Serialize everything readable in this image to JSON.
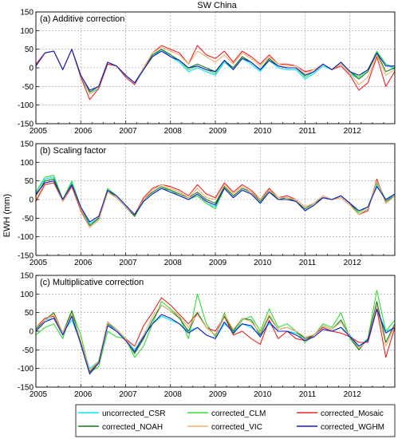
{
  "figure": {
    "title": "SW China",
    "ylabel": "EWH (mm)"
  },
  "legend": {
    "entries": [
      {
        "name": "uncorrected_CSR",
        "color": "#00e5ff"
      },
      {
        "name": "corrected_CLM",
        "color": "#33dd33"
      },
      {
        "name": "corrected_Mosaic",
        "color": "#ee2222"
      },
      {
        "name": "corrected_NOAH",
        "color": "#1a7a1a"
      },
      {
        "name": "corrected_VIC",
        "color": "#f0b070"
      },
      {
        "name": "corrected_WGHM",
        "color": "#1a1acc"
      }
    ]
  },
  "chart_data": [
    {
      "type": "line",
      "title": "(a) Additive correction",
      "xlim": [
        2005,
        2013
      ],
      "ylim": [
        -150,
        150
      ],
      "xticks": [
        2005,
        2006,
        2007,
        2008,
        2009,
        2010,
        2011,
        2012
      ],
      "yticks": [
        -150,
        -100,
        -50,
        0,
        50,
        100,
        150
      ],
      "grid": true,
      "x": [
        2005.0,
        2005.2,
        2005.4,
        2005.6,
        2005.8,
        2006.0,
        2006.2,
        2006.4,
        2006.6,
        2006.8,
        2007.0,
        2007.2,
        2007.4,
        2007.6,
        2007.8,
        2008.0,
        2008.2,
        2008.4,
        2008.6,
        2008.8,
        2009.0,
        2009.2,
        2009.4,
        2009.6,
        2009.8,
        2010.0,
        2010.2,
        2010.4,
        2010.6,
        2010.8,
        2011.0,
        2011.2,
        2011.4,
        2011.6,
        2011.8,
        2012.0,
        2012.2,
        2012.4,
        2012.6,
        2012.8,
        2013.0
      ],
      "series": [
        {
          "name": "uncorrected_CSR",
          "color": "#00e5ff",
          "values": [
            5,
            40,
            45,
            -5,
            50,
            -25,
            -70,
            -55,
            10,
            5,
            -25,
            -45,
            -5,
            30,
            50,
            30,
            15,
            -10,
            0,
            -10,
            -20,
            15,
            -5,
            25,
            10,
            -10,
            20,
            0,
            -5,
            -5,
            -30,
            -15,
            5,
            -5,
            10,
            -15,
            -30,
            -10,
            45,
            10,
            -5
          ]
        },
        {
          "name": "corrected_CLM",
          "color": "#33dd33",
          "values": [
            5,
            40,
            45,
            -5,
            50,
            -20,
            -65,
            -50,
            15,
            5,
            -20,
            -40,
            -5,
            35,
            50,
            35,
            20,
            -5,
            5,
            -5,
            -15,
            20,
            0,
            30,
            15,
            -5,
            25,
            5,
            0,
            0,
            -25,
            -10,
            10,
            -5,
            15,
            -10,
            -25,
            -5,
            45,
            10,
            0
          ]
        },
        {
          "name": "corrected_Mosaic",
          "color": "#ee2222",
          "values": [
            10,
            40,
            45,
            -5,
            50,
            -25,
            -85,
            -55,
            10,
            5,
            -25,
            -45,
            0,
            40,
            60,
            50,
            40,
            10,
            60,
            35,
            25,
            45,
            15,
            45,
            30,
            10,
            35,
            10,
            10,
            5,
            -10,
            -5,
            10,
            -5,
            5,
            -20,
            -60,
            -40,
            30,
            -50,
            -10
          ]
        },
        {
          "name": "corrected_NOAH",
          "color": "#1a7a1a",
          "values": [
            5,
            40,
            45,
            -5,
            50,
            -20,
            -65,
            -50,
            15,
            5,
            -20,
            -40,
            -5,
            35,
            50,
            35,
            20,
            0,
            10,
            0,
            -10,
            20,
            0,
            30,
            15,
            -5,
            25,
            5,
            0,
            0,
            -20,
            -10,
            10,
            -5,
            15,
            -10,
            -30,
            -10,
            40,
            -10,
            0
          ]
        },
        {
          "name": "corrected_VIC",
          "color": "#f0b070",
          "values": [
            5,
            40,
            45,
            -5,
            50,
            -20,
            -70,
            -50,
            15,
            5,
            -20,
            -40,
            0,
            40,
            55,
            45,
            35,
            10,
            45,
            30,
            15,
            35,
            10,
            40,
            25,
            5,
            30,
            10,
            5,
            5,
            -15,
            -5,
            10,
            -5,
            10,
            -15,
            -45,
            -25,
            35,
            -20,
            -5
          ]
        },
        {
          "name": "corrected_WGHM",
          "color": "#1a1acc",
          "values": [
            5,
            40,
            45,
            -5,
            50,
            -20,
            -60,
            -50,
            15,
            5,
            -20,
            -40,
            -5,
            30,
            45,
            30,
            20,
            0,
            5,
            -5,
            -10,
            20,
            -5,
            25,
            15,
            -5,
            20,
            5,
            0,
            0,
            -20,
            -10,
            10,
            -5,
            15,
            -10,
            -20,
            -5,
            40,
            5,
            5
          ]
        }
      ]
    },
    {
      "type": "line",
      "title": "(b) Scaling factor",
      "xlim": [
        2005,
        2013
      ],
      "ylim": [
        -150,
        150
      ],
      "xticks": [
        2005,
        2006,
        2007,
        2008,
        2009,
        2010,
        2011,
        2012
      ],
      "yticks": [
        -150,
        -100,
        -50,
        0,
        50,
        100,
        150
      ],
      "grid": true,
      "x": [
        2005.0,
        2005.2,
        2005.4,
        2005.6,
        2005.8,
        2006.0,
        2006.2,
        2006.4,
        2006.6,
        2006.8,
        2007.0,
        2007.2,
        2007.4,
        2007.6,
        2007.8,
        2008.0,
        2008.2,
        2008.4,
        2008.6,
        2008.8,
        2009.0,
        2009.2,
        2009.4,
        2009.6,
        2009.8,
        2010.0,
        2010.2,
        2010.4,
        2010.6,
        2010.8,
        2011.0,
        2011.2,
        2011.4,
        2011.6,
        2011.8,
        2012.0,
        2012.2,
        2012.4,
        2012.6,
        2012.8,
        2013.0
      ],
      "series": [
        {
          "name": "uncorrected_CSR",
          "color": "#00e5ff",
          "values": [
            20,
            55,
            60,
            0,
            45,
            -20,
            -65,
            -50,
            25,
            10,
            -15,
            -45,
            -5,
            15,
            30,
            20,
            10,
            0,
            10,
            -10,
            -20,
            30,
            5,
            25,
            15,
            -10,
            20,
            0,
            0,
            -5,
            -30,
            -15,
            5,
            0,
            10,
            -10,
            -30,
            -20,
            40,
            0,
            10
          ]
        },
        {
          "name": "corrected_CLM",
          "color": "#33dd33",
          "values": [
            20,
            60,
            65,
            0,
            50,
            -20,
            -70,
            -50,
            30,
            10,
            -15,
            -45,
            -5,
            15,
            30,
            25,
            10,
            0,
            10,
            -10,
            -25,
            30,
            5,
            25,
            15,
            -10,
            20,
            0,
            0,
            -5,
            -30,
            -15,
            5,
            0,
            10,
            -10,
            -35,
            -20,
            45,
            0,
            15
          ]
        },
        {
          "name": "corrected_Mosaic",
          "color": "#ee2222",
          "values": [
            -5,
            40,
            45,
            -5,
            35,
            -30,
            -75,
            -55,
            20,
            5,
            -20,
            -40,
            5,
            30,
            40,
            35,
            25,
            10,
            40,
            15,
            5,
            45,
            20,
            40,
            25,
            0,
            30,
            5,
            10,
            0,
            -20,
            -10,
            10,
            0,
            5,
            -15,
            -40,
            -30,
            55,
            -10,
            10
          ]
        },
        {
          "name": "corrected_NOAH",
          "color": "#1a7a1a",
          "values": [
            10,
            50,
            55,
            0,
            40,
            -25,
            -70,
            -50,
            25,
            5,
            -20,
            -45,
            0,
            20,
            35,
            25,
            15,
            5,
            20,
            0,
            -10,
            35,
            10,
            30,
            20,
            -5,
            25,
            0,
            5,
            -5,
            -25,
            -10,
            5,
            0,
            10,
            -10,
            -40,
            -25,
            50,
            -5,
            10
          ]
        },
        {
          "name": "corrected_VIC",
          "color": "#f0b070",
          "values": [
            0,
            45,
            50,
            -5,
            40,
            -25,
            -75,
            -55,
            20,
            5,
            -20,
            -40,
            0,
            25,
            40,
            30,
            20,
            5,
            30,
            5,
            0,
            40,
            15,
            35,
            20,
            0,
            25,
            5,
            5,
            0,
            -20,
            -10,
            10,
            0,
            5,
            -15,
            -40,
            -25,
            50,
            -10,
            10
          ]
        },
        {
          "name": "corrected_WGHM",
          "color": "#1a1acc",
          "values": [
            15,
            45,
            50,
            0,
            40,
            -20,
            -60,
            -45,
            25,
            10,
            -15,
            -40,
            -5,
            15,
            30,
            20,
            10,
            0,
            15,
            -5,
            -15,
            30,
            5,
            25,
            15,
            -10,
            20,
            0,
            0,
            -5,
            -30,
            -15,
            5,
            0,
            10,
            -10,
            -30,
            -20,
            35,
            0,
            15
          ]
        }
      ]
    },
    {
      "type": "line",
      "title": "(c) Multiplicative correction",
      "xlim": [
        2005,
        2013
      ],
      "ylim": [
        -150,
        150
      ],
      "xticks": [
        2005,
        2006,
        2007,
        2008,
        2009,
        2010,
        2011,
        2012
      ],
      "yticks": [
        -150,
        -100,
        -50,
        0,
        50,
        100,
        150
      ],
      "grid": true,
      "x": [
        2005.0,
        2005.2,
        2005.4,
        2005.6,
        2005.8,
        2006.0,
        2006.2,
        2006.4,
        2006.6,
        2006.8,
        2007.0,
        2007.2,
        2007.4,
        2007.6,
        2007.8,
        2008.0,
        2008.2,
        2008.4,
        2008.6,
        2008.8,
        2009.0,
        2009.2,
        2009.4,
        2009.6,
        2009.8,
        2010.0,
        2010.2,
        2010.4,
        2010.6,
        2010.8,
        2011.0,
        2011.2,
        2011.4,
        2011.6,
        2011.8,
        2012.0,
        2012.2,
        2012.4,
        2012.6,
        2012.8,
        2013.0
      ],
      "series": [
        {
          "name": "uncorrected_CSR",
          "color": "#00e5ff",
          "values": [
            5,
            30,
            35,
            -5,
            30,
            -30,
            -100,
            -80,
            20,
            0,
            -20,
            -50,
            -10,
            20,
            40,
            30,
            20,
            0,
            10,
            -10,
            -20,
            20,
            0,
            20,
            10,
            -10,
            20,
            0,
            0,
            -5,
            -20,
            -10,
            10,
            0,
            10,
            -10,
            -40,
            -20,
            60,
            0,
            10
          ]
        },
        {
          "name": "corrected_CLM",
          "color": "#33dd33",
          "values": [
            -10,
            10,
            20,
            -20,
            55,
            -10,
            -110,
            -95,
            0,
            -15,
            -20,
            -70,
            -40,
            20,
            80,
            60,
            40,
            -20,
            100,
            20,
            -15,
            50,
            -10,
            30,
            40,
            0,
            60,
            10,
            20,
            0,
            -30,
            -10,
            20,
            10,
            50,
            -20,
            -50,
            -20,
            110,
            0,
            30
          ]
        },
        {
          "name": "corrected_Mosaic",
          "color": "#ee2222",
          "values": [
            10,
            35,
            40,
            -5,
            40,
            -30,
            -110,
            -80,
            25,
            5,
            -20,
            -40,
            15,
            50,
            90,
            70,
            45,
            20,
            50,
            10,
            0,
            40,
            -10,
            0,
            -20,
            -35,
            30,
            -20,
            0,
            -20,
            -25,
            -10,
            10,
            0,
            -5,
            -15,
            -30,
            -30,
            60,
            -70,
            10
          ]
        },
        {
          "name": "corrected_NOAH",
          "color": "#1a7a1a",
          "values": [
            5,
            30,
            50,
            -5,
            55,
            -30,
            -110,
            -85,
            20,
            5,
            -20,
            -60,
            -20,
            30,
            70,
            55,
            35,
            0,
            50,
            10,
            -10,
            40,
            0,
            35,
            30,
            -10,
            40,
            5,
            10,
            0,
            -20,
            -10,
            15,
            5,
            30,
            -15,
            -50,
            -20,
            80,
            -30,
            20
          ]
        },
        {
          "name": "corrected_VIC",
          "color": "#f0b070",
          "values": [
            10,
            30,
            45,
            -5,
            45,
            -25,
            -105,
            -80,
            25,
            5,
            -20,
            -55,
            -10,
            40,
            70,
            55,
            40,
            10,
            45,
            10,
            -10,
            45,
            5,
            35,
            25,
            -5,
            45,
            5,
            10,
            0,
            -15,
            -10,
            15,
            5,
            25,
            -15,
            -45,
            -25,
            70,
            -40,
            15
          ]
        },
        {
          "name": "corrected_WGHM",
          "color": "#1a1acc",
          "values": [
            0,
            25,
            35,
            -10,
            40,
            -35,
            -115,
            -85,
            15,
            0,
            -25,
            -55,
            -15,
            20,
            45,
            35,
            20,
            -5,
            10,
            -10,
            -20,
            25,
            -5,
            20,
            15,
            -15,
            25,
            0,
            0,
            -10,
            -25,
            -15,
            5,
            0,
            10,
            -15,
            -40,
            -25,
            60,
            -5,
            10
          ]
        }
      ]
    }
  ]
}
